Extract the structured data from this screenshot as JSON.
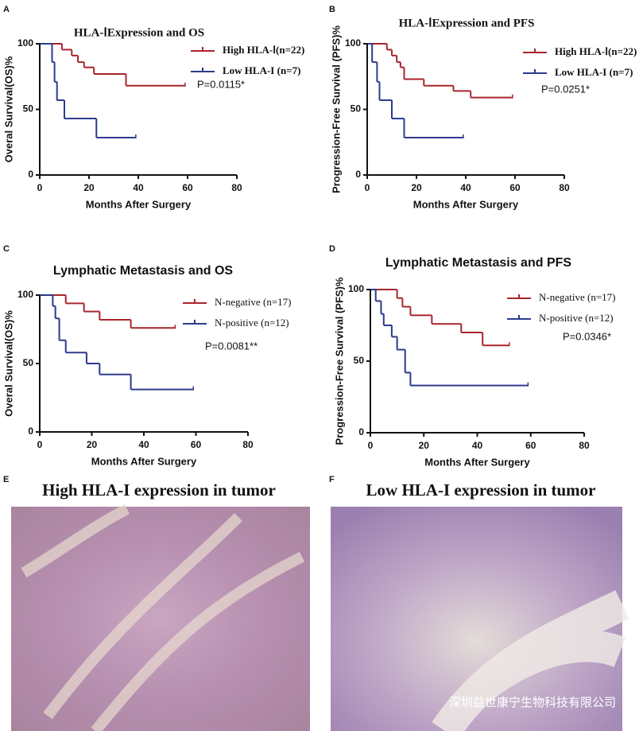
{
  "chart_data": [
    {
      "type": "step",
      "panel": "A",
      "title": "HLA-ⅠExpression and OS",
      "x_label": "Months After Surgery",
      "y_label": "Overal Survival(OS)%",
      "xlim": [
        0,
        80
      ],
      "ylim": [
        0,
        100
      ],
      "xticks": [
        0,
        20,
        40,
        60,
        80
      ],
      "yticks": [
        0,
        50,
        100
      ],
      "annotation": "P=0.0115*",
      "series": [
        {
          "name": "High HLA-Ⅰ(n=22)",
          "color": "#a8262c",
          "x": [
            0,
            9,
            13,
            15.5,
            18,
            22,
            35,
            59
          ],
          "values": [
            100,
            95.5,
            91,
            86,
            82,
            77,
            68,
            68
          ]
        },
        {
          "name": "Low HLA-I (n=7)",
          "color": "#2d3a8c",
          "x": [
            0,
            5,
            6,
            7,
            10,
            23,
            39
          ],
          "values": [
            100,
            86,
            71,
            57,
            43,
            28.5,
            28.5
          ]
        }
      ]
    },
    {
      "type": "step",
      "panel": "B",
      "title": "HLA-ⅠExpression and PFS",
      "x_label": "Months After Surgery",
      "y_label": "Progression-Free Survival (PFS)%",
      "xlim": [
        0,
        80
      ],
      "ylim": [
        0,
        100
      ],
      "xticks": [
        0,
        20,
        40,
        60,
        80
      ],
      "yticks": [
        0,
        50,
        100
      ],
      "annotation": "P=0.0251*",
      "series": [
        {
          "name": "High HLA-Ⅰ(n=22)",
          "color": "#a8262c",
          "x": [
            0,
            8,
            10,
            12,
            13.5,
            15,
            23,
            35,
            42,
            59
          ],
          "values": [
            100,
            95.5,
            91,
            86,
            82,
            73,
            68,
            64,
            59,
            59
          ]
        },
        {
          "name": "Low HLA-I (n=7)",
          "color": "#2d3a8c",
          "x": [
            0,
            2,
            4,
            5,
            10,
            15,
            39
          ],
          "values": [
            100,
            86,
            71,
            57,
            43,
            28.5,
            28.5
          ]
        }
      ]
    },
    {
      "type": "step",
      "panel": "C",
      "title": "Lymphatic Metastasis and OS",
      "x_label": "Months After Surgery",
      "y_label": "Overal Survival(OS)%",
      "xlim": [
        0,
        80
      ],
      "ylim": [
        0,
        100
      ],
      "xticks": [
        0,
        20,
        40,
        60,
        80
      ],
      "yticks": [
        0,
        50,
        100
      ],
      "annotation": "P=0.0081**",
      "series": [
        {
          "name": "N-negative (n=17)",
          "color": "#a8262c",
          "x": [
            0,
            10,
            17,
            23,
            35,
            52
          ],
          "values": [
            100,
            94,
            88,
            82,
            76,
            76
          ]
        },
        {
          "name": "N-positive (n=12)",
          "color": "#2d3a8c",
          "x": [
            0,
            5,
            6,
            7.5,
            10,
            18,
            23,
            35,
            59
          ],
          "values": [
            100,
            92,
            83,
            67,
            58,
            50,
            42,
            31,
            31
          ]
        }
      ]
    },
    {
      "type": "step",
      "panel": "D",
      "title": "Lymphatic Metastasis and PFS",
      "x_label": "Months After Surgery",
      "y_label": "Progression-Free Survival (PFS)%",
      "xlim": [
        0,
        80
      ],
      "ylim": [
        0,
        100
      ],
      "xticks": [
        0,
        20,
        40,
        60,
        80
      ],
      "yticks": [
        0,
        50,
        100
      ],
      "annotation": "P=0.0346*",
      "series": [
        {
          "name": "N-negative (n=17)",
          "color": "#a8262c",
          "x": [
            0,
            10,
            12,
            15,
            23,
            34,
            42,
            52
          ],
          "values": [
            100,
            94,
            88,
            82,
            76,
            70,
            61,
            61
          ]
        },
        {
          "name": "N-positive (n=12)",
          "color": "#2d3a8c",
          "x": [
            0,
            2,
            4,
            5,
            8,
            10,
            13,
            15,
            59
          ],
          "values": [
            100,
            92,
            83,
            75,
            67,
            58,
            42,
            33,
            33
          ]
        }
      ]
    }
  ],
  "images": [
    {
      "panel": "E",
      "title": "High HLA-I expression in tumor"
    },
    {
      "panel": "F",
      "title": "Low HLA-I expression in tumor"
    }
  ],
  "watermark": "深圳益世康宁生物科技有限公司"
}
